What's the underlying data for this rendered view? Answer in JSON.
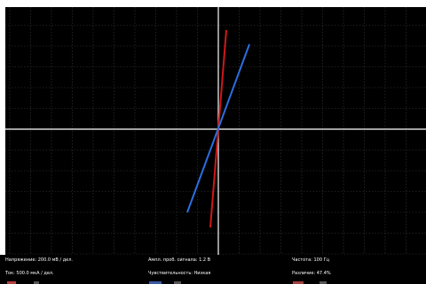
{
  "status": {
    "voltage": "Напряжение: 200.0 мВ / дел.",
    "probe_amplitude": "Ампл. проб. сигнала: 1.2 В",
    "frequency": "Частота: 100 Гц",
    "current": "Ток: 500.0 мкА / дел.",
    "sensitivity": "Чувствительность: Низкая",
    "difference": "Различие: 47.4%"
  },
  "traces": [
    {
      "color": "#d01818"
    },
    {
      "color": "#2a6fe0"
    }
  ],
  "colors": {
    "background": "#000000",
    "grid": "#3a3a3a",
    "axes": "#d8d8d8",
    "text": "#ffffff"
  }
}
